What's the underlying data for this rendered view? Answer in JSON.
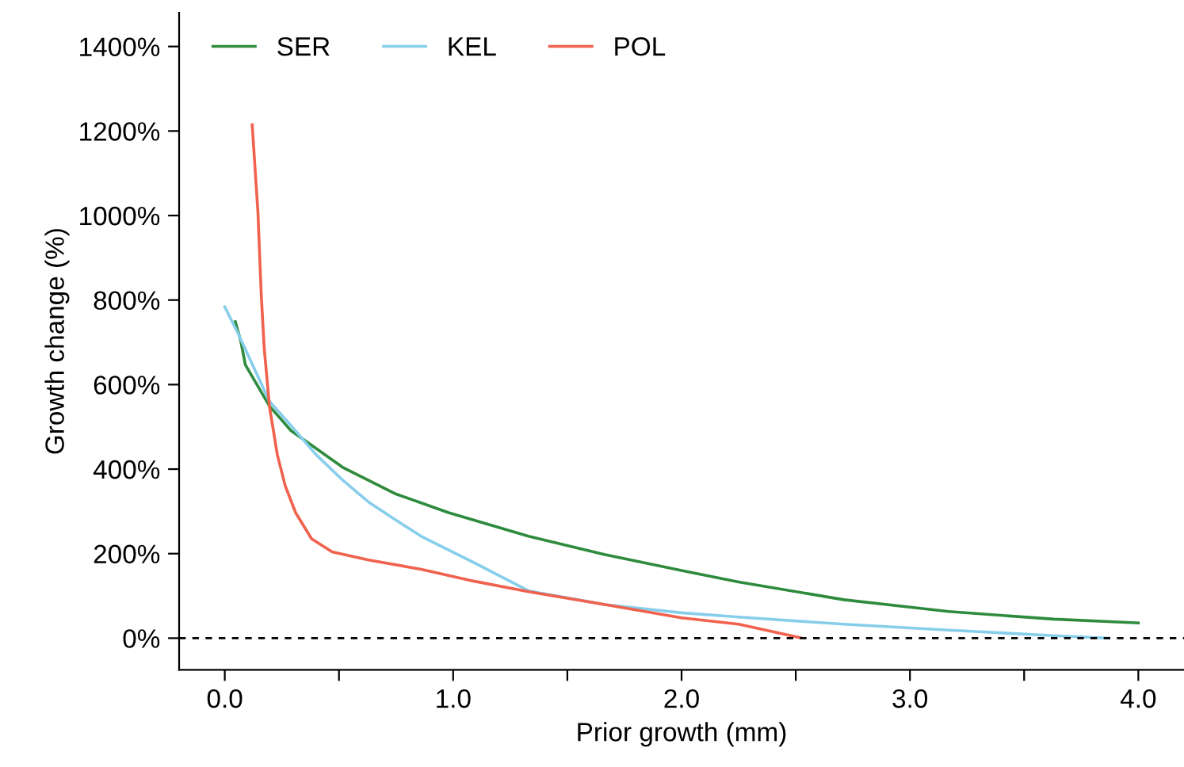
{
  "chart_data": {
    "type": "line",
    "xlabel": "Prior growth (mm)",
    "ylabel": "Growth change (%)",
    "xlim": [
      -0.2,
      4.2
    ],
    "ylim": [
      -75,
      1480
    ],
    "xticks": [
      {
        "value": 0,
        "label": "0.0"
      },
      {
        "value": 0.5,
        "label": null
      },
      {
        "value": 1,
        "label": "1.0"
      },
      {
        "value": 1.5,
        "label": null
      },
      {
        "value": 2,
        "label": "2.0"
      },
      {
        "value": 2.5,
        "label": null
      },
      {
        "value": 3,
        "label": "3.0"
      },
      {
        "value": 3.5,
        "label": null
      },
      {
        "value": 4,
        "label": "4.0"
      }
    ],
    "yticks": [
      {
        "value": 0,
        "label": "0%"
      },
      {
        "value": 200,
        "label": "200%"
      },
      {
        "value": 400,
        "label": "400%"
      },
      {
        "value": 600,
        "label": "600%"
      },
      {
        "value": 800,
        "label": "800%"
      },
      {
        "value": 1000,
        "label": "1000%"
      },
      {
        "value": 1200,
        "label": "1200%"
      },
      {
        "value": 1400,
        "label": "1400%"
      }
    ],
    "series": [
      {
        "name": "SER",
        "color": "#2e8b3e",
        "x": [
          0.046,
          0.07,
          0.09,
          0.196,
          0.29,
          0.52,
          0.75,
          0.98,
          1.33,
          1.67,
          2.0,
          2.25,
          2.71,
          3.17,
          3.63,
          4.0
        ],
        "values": [
          749,
          703,
          647,
          549,
          491,
          403,
          341,
          297,
          241,
          197,
          160,
          133,
          91,
          63,
          45,
          36
        ]
      },
      {
        "name": "KEL",
        "color": "#87ceeb",
        "x": [
          0,
          0.057,
          0.196,
          0.29,
          0.4,
          0.52,
          0.63,
          0.75,
          0.86,
          1.09,
          1.33,
          1.67,
          2.0,
          2.25,
          2.71,
          3.17,
          3.63,
          3.87
        ],
        "values": [
          784,
          722,
          560,
          503,
          434,
          372,
          322,
          279,
          241,
          179,
          112,
          79,
          60,
          50,
          33,
          19,
          6,
          0
        ]
      },
      {
        "name": "POL",
        "color": "#f0624d",
        "x": [
          0.12,
          0.145,
          0.16,
          0.173,
          0.196,
          0.23,
          0.265,
          0.31,
          0.38,
          0.47,
          0.63,
          0.86,
          1.09,
          1.33,
          1.67,
          2.0,
          2.25,
          2.52
        ],
        "values": [
          1215,
          1009,
          809,
          684,
          547,
          434,
          360,
          297,
          235,
          204,
          185,
          163,
          135,
          110,
          79,
          48,
          33,
          1
        ]
      }
    ],
    "ref_lines": [
      {
        "axis": "y",
        "value": 0,
        "color": "#000000",
        "line_style": "dashed"
      }
    ],
    "legend": "top left",
    "grid": false
  }
}
